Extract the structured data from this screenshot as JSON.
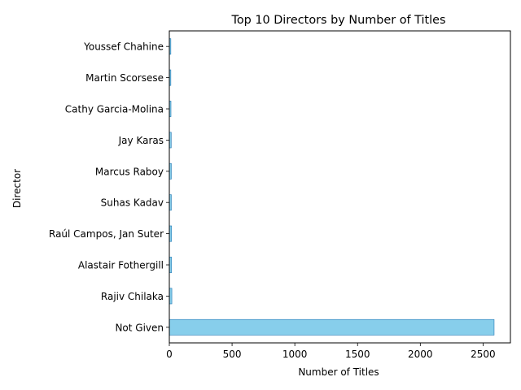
{
  "chart_data": {
    "type": "bar",
    "orientation": "horizontal",
    "title": "Top 10 Directors by Number of Titles",
    "xlabel": "Number of Titles",
    "ylabel": "Director",
    "categories": [
      "Not Given",
      "Rajiv Chilaka",
      "Alastair Fothergill",
      "Raúl Campos, Jan Suter",
      "Suhas Kadav",
      "Marcus Raboy",
      "Jay Karas",
      "Cathy Garcia-Molina",
      "Martin Scorsese",
      "Youssef Chahine"
    ],
    "values": [
      2588,
      20,
      18,
      18,
      16,
      16,
      15,
      13,
      12,
      12
    ],
    "xlim": [
      0,
      2718
    ],
    "xticks": [
      0,
      500,
      1000,
      1500,
      2000,
      2500
    ],
    "grid": false,
    "bar_color": "#87ceeb",
    "bar_edge_color": "#1f77b4"
  }
}
